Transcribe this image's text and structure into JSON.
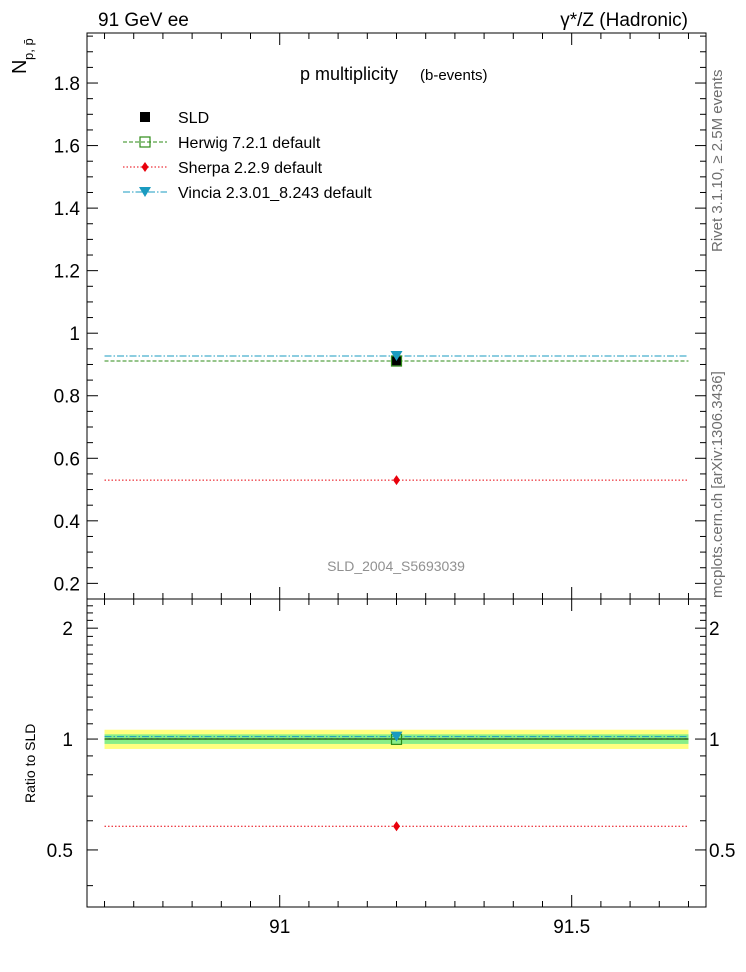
{
  "header": {
    "left": "91 GeV ee",
    "right": "γ*/Z (Hadronic)"
  },
  "side_text": {
    "rivet": "Rivet 3.1.10, ≥ 2.5M events",
    "mcplots": "mcplots.cern.ch [arXiv:1306.3436]"
  },
  "chart_data": {
    "type": "scatter",
    "title": "p multiplicity",
    "subtitle": "(b-events)",
    "analysis_label": "SLD_2004_S5693039",
    "xlim": [
      90.67,
      91.73
    ],
    "x_ticks": [
      91,
      91.5
    ],
    "x_tick_labels": [
      "91",
      "91.5"
    ],
    "main": {
      "ylabel": "N",
      "ylabel_sub": "p, p̄",
      "ylim": [
        0.15,
        1.96
      ],
      "y_ticks": [
        0.2,
        0.4,
        0.6,
        0.8,
        1,
        1.2,
        1.4,
        1.6,
        1.8
      ],
      "y_tick_labels": [
        "0.2",
        "0.4",
        "0.6",
        "0.8",
        "1",
        "1.2",
        "1.4",
        "1.6",
        "1.8"
      ]
    },
    "ratio": {
      "ylabel": "Ratio to SLD",
      "ylim": [
        0.35,
        2.4
      ],
      "y_ticks": [
        0.5,
        1,
        2
      ],
      "y_tick_labels": [
        "0.5",
        "1",
        "2"
      ],
      "band_inner": [
        0.97,
        1.03
      ],
      "band_outer": [
        0.94,
        1.06
      ]
    },
    "series": [
      {
        "name": "SLD",
        "x": 91.2,
        "y": 0.913,
        "xrange": null,
        "ratio": 1.0,
        "color": "#000000",
        "marker": "square-filled",
        "dash": ""
      },
      {
        "name": "Herwig 7.2.1 default",
        "x": 91.2,
        "y": 0.911,
        "xrange": [
          90.7,
          91.7
        ],
        "ratio": 0.998,
        "color": "#2e8b17",
        "marker": "square-open",
        "dash": "4,2"
      },
      {
        "name": "Sherpa 2.2.9 default",
        "x": 91.2,
        "y": 0.53,
        "xrange": [
          90.7,
          91.7
        ],
        "ratio": 0.58,
        "color": "#e8000b",
        "marker": "diamond",
        "dash": "1.5,2"
      },
      {
        "name": "Vincia 2.3.01_8.243 default",
        "x": 91.2,
        "y": 0.927,
        "xrange": [
          90.7,
          91.7
        ],
        "ratio": 1.015,
        "color": "#1a9bc0",
        "marker": "triangle-down",
        "dash": "7,2,1.5,2"
      }
    ]
  }
}
